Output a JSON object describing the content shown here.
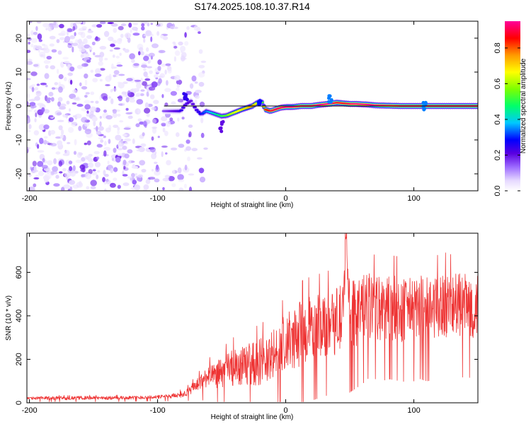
{
  "title": "S174.2025.108.10.37.R14",
  "chart_data": [
    {
      "type": "heatmap",
      "xlabel": "Height of straight line (km)",
      "ylabel": "Frequency (Hz)",
      "xlim": [
        -202,
        150
      ],
      "ylim": [
        -25,
        25
      ],
      "xticks": [
        -200,
        -100,
        0,
        100
      ],
      "yticks": [
        -20,
        -10,
        0,
        10,
        20
      ],
      "colorbar": {
        "label": "Normalized spectral amplitude",
        "range": [
          0,
          0.95
        ],
        "ticks": [
          0.0,
          0.2,
          0.4,
          0.6,
          0.8
        ],
        "tick_labels": [
          "0.0",
          "0.2",
          "0.4",
          "0.6",
          "0.8"
        ],
        "colormap": [
          "#ffffff",
          "#e6d9ff",
          "#9d6bff",
          "#5a00e0",
          "#0000ff",
          "#00c8ff",
          "#00ff6a",
          "#7dff00",
          "#ffff00",
          "#ff9900",
          "#ff0000",
          "#ff0099"
        ]
      },
      "fit_line": {
        "x": [
          -95,
          150
        ],
        "y": [
          0,
          0
        ]
      },
      "ridge": {
        "x": [
          -95,
          -88,
          -82,
          -78,
          -74,
          -70,
          -66,
          -62,
          -58,
          -54,
          -50,
          -46,
          -42,
          -38,
          -34,
          -30,
          -26,
          -22,
          -19,
          -16,
          -12,
          -8,
          -4,
          0,
          4,
          8,
          12,
          16,
          20,
          25,
          30,
          35,
          40,
          45,
          50,
          55,
          60,
          65,
          70,
          80,
          90,
          100,
          110,
          120,
          130,
          140,
          150
        ],
        "y": [
          -1.5,
          -1.5,
          -1.5,
          0.5,
          1.5,
          -1.0,
          -2.5,
          -1.5,
          -2.0,
          -2.5,
          -3.0,
          -2.8,
          -2.2,
          -1.6,
          -1.0,
          -0.5,
          0.0,
          1.0,
          1.5,
          -1.0,
          -1.5,
          -1.0,
          -0.5,
          -0.3,
          -0.3,
          -0.2,
          0.0,
          0.0,
          0.0,
          0.3,
          0.5,
          0.7,
          1.0,
          0.8,
          0.6,
          0.6,
          0.5,
          0.4,
          0.2,
          0.1,
          0.0,
          0.0,
          0.0,
          0.0,
          0.0,
          0.0,
          0.0
        ],
        "amplitude": [
          0.2,
          0.25,
          0.3,
          0.28,
          0.25,
          0.3,
          0.35,
          0.4,
          0.45,
          0.5,
          0.55,
          0.6,
          0.65,
          0.7,
          0.72,
          0.75,
          0.8,
          0.65,
          0.55,
          0.85,
          0.9,
          0.92,
          0.93,
          0.95,
          0.95,
          0.95,
          0.95,
          0.95,
          0.95,
          0.95,
          0.95,
          0.95,
          0.9,
          0.9,
          0.92,
          0.95,
          0.95,
          0.95,
          0.95,
          0.95,
          0.95,
          0.95,
          0.95,
          0.95,
          0.95,
          0.95,
          0.95
        ]
      }
    },
    {
      "type": "line",
      "xlabel": "Height of straight line (km)",
      "ylabel": "SNR (10 * v/v)",
      "xlim": [
        -202,
        150
      ],
      "ylim": [
        0,
        780
      ],
      "xticks": [
        -200,
        -100,
        0,
        100
      ],
      "yticks": [
        0,
        200,
        400,
        600
      ],
      "series": [
        {
          "color": "#ee3333",
          "x": [
            -202,
            -190,
            -180,
            -170,
            -160,
            -150,
            -140,
            -130,
            -120,
            -110,
            -100,
            -90,
            -80,
            -75,
            -70,
            -65,
            -60,
            -58,
            -55,
            -50,
            -45,
            -40,
            -35,
            -30,
            -25,
            -20,
            -15,
            -10,
            -5,
            0,
            5,
            10,
            15,
            20,
            25,
            30,
            35,
            40,
            45,
            47,
            50,
            55,
            60,
            65,
            70,
            75,
            80,
            85,
            90,
            95,
            100,
            105,
            110,
            115,
            120,
            125,
            130,
            135,
            140,
            145,
            150
          ],
          "y": [
            20,
            22,
            22,
            21,
            23,
            22,
            22,
            23,
            24,
            25,
            27,
            30,
            40,
            55,
            80,
            100,
            130,
            110,
            125,
            140,
            150,
            160,
            165,
            175,
            180,
            190,
            200,
            215,
            240,
            270,
            290,
            310,
            330,
            340,
            350,
            360,
            370,
            380,
            390,
            760,
            400,
            420,
            440,
            445,
            440,
            430,
            440,
            435,
            430,
            425,
            430,
            440,
            430,
            435,
            440,
            450,
            440,
            445,
            450,
            445,
            440
          ],
          "band": [
            5,
            8,
            8,
            8,
            8,
            8,
            8,
            8,
            8,
            8,
            8,
            10,
            15,
            20,
            30,
            40,
            50,
            60,
            60,
            70,
            80,
            90,
            90,
            100,
            100,
            110,
            110,
            120,
            130,
            140,
            140,
            150,
            150,
            150,
            150,
            150,
            150,
            160,
            160,
            0,
            160,
            160,
            160,
            150,
            150,
            150,
            150,
            150,
            150,
            150,
            150,
            150,
            150,
            150,
            150,
            150,
            150,
            150,
            150,
            150,
            150
          ]
        }
      ]
    }
  ]
}
